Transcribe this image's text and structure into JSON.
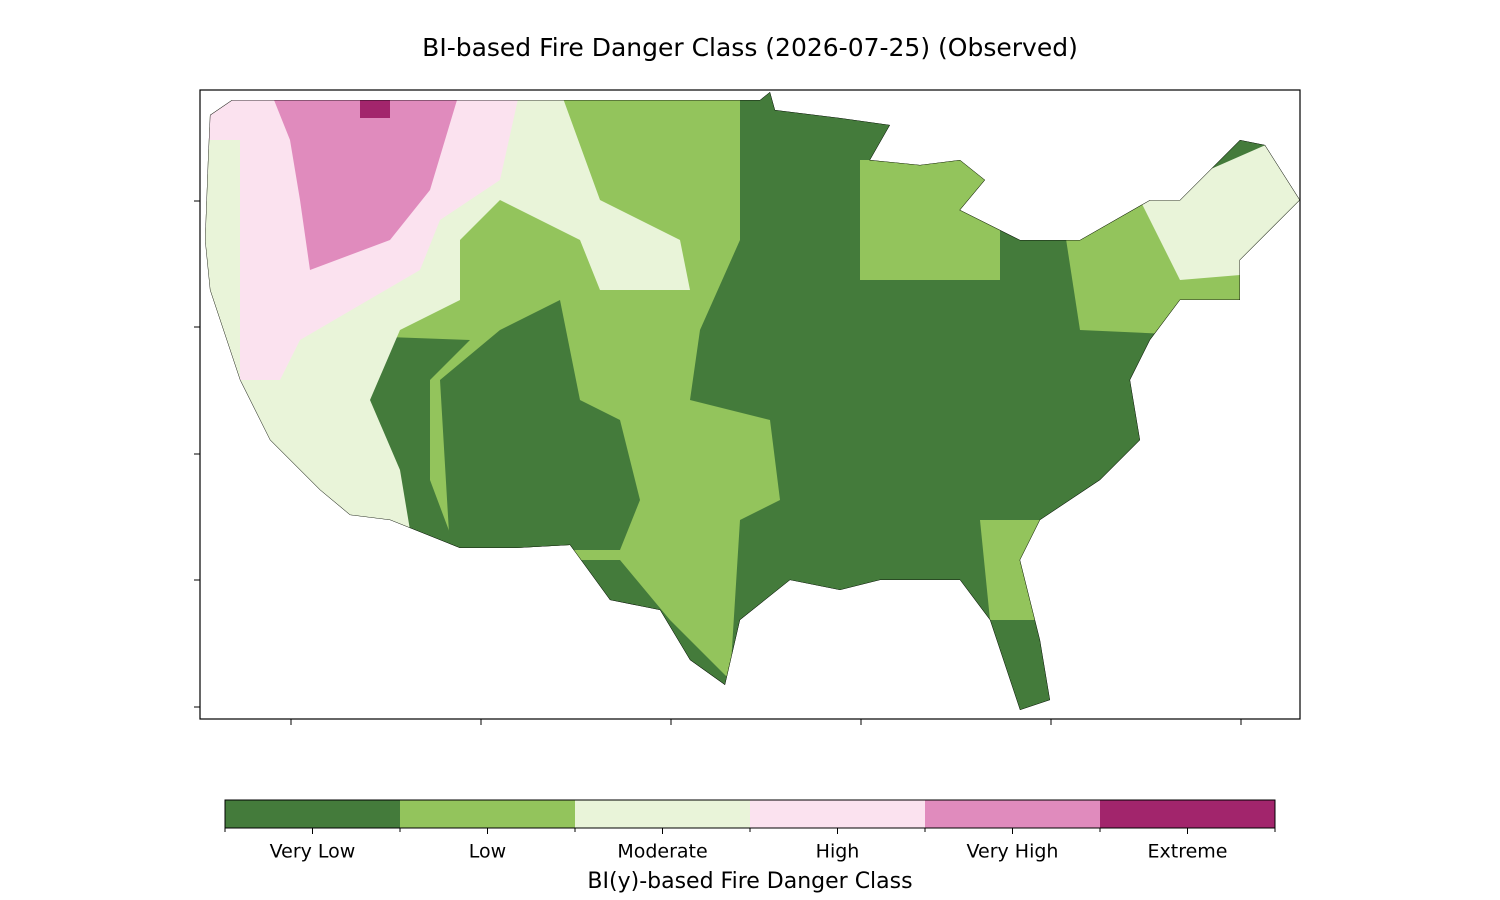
{
  "title": "BI-based Fire Danger Class (2026-07-25) (Observed)",
  "colorbar": {
    "label": "BI(y)-based Fire Danger Class",
    "classes": [
      {
        "name": "Very Low",
        "color": "#447b3b"
      },
      {
        "name": "Low",
        "color": "#93c45c"
      },
      {
        "name": "Moderate",
        "color": "#e9f4d9"
      },
      {
        "name": "High",
        "color": "#fbe2ef"
      },
      {
        "name": "Very High",
        "color": "#e08bbd"
      },
      {
        "name": "Extreme",
        "color": "#a2256c"
      }
    ]
  }
}
